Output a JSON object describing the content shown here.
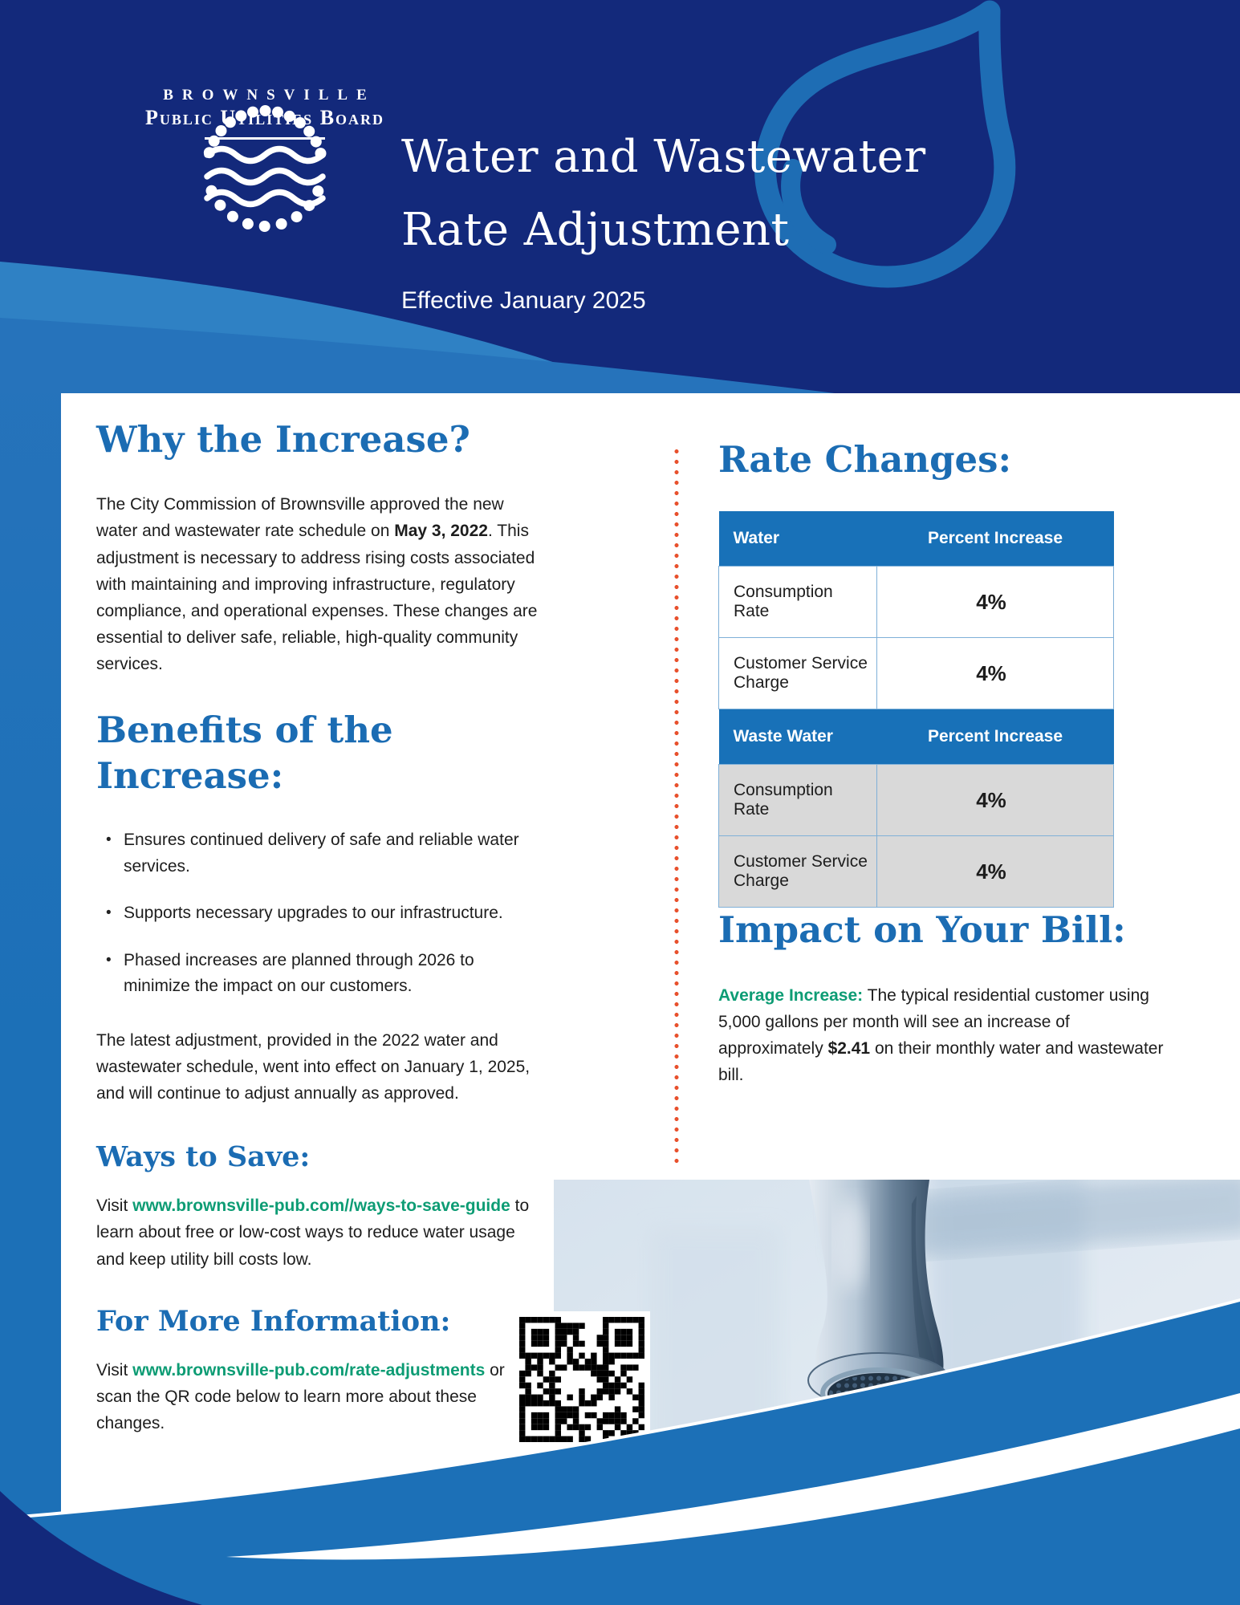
{
  "colors": {
    "navy": "#13297b",
    "swoosh_blue": "#1c70b7",
    "heading_blue": "#1b6cb3",
    "table_header_blue": "#1871b8",
    "table_gray_row": "#d9d9d9",
    "link_green": "#0d9c74",
    "divider_orange": "#e8512d"
  },
  "header": {
    "logo_top": "BROWNSVILLE",
    "logo_bottom": "Public Utilities Board",
    "title_line1": "Water and Wastewater",
    "title_line2": "Rate Adjustment",
    "subtitle": "Effective January 2025"
  },
  "left": {
    "why_heading": "Why the Increase?",
    "why_pre": "The City Commission of Brownsville approved the new water and wastewater rate schedule on ",
    "why_bold": "May 3, 2022",
    "why_post": ". This adjustment is necessary to address rising costs associated with maintaining and improving infrastructure, regulatory compliance, and operational expenses. These changes are essential to deliver safe, reliable, high-quality community services.",
    "benefits_heading": "Benefits of the Increase:",
    "bullets": [
      "Ensures continued delivery of safe and reliable water services.",
      "Supports necessary upgrades to our infrastructure.",
      "Phased increases are planned through 2026 to minimize the impact on our customers."
    ],
    "latest_para": "The latest adjustment, provided in the 2022 water and wastewater schedule, went into effect on January 1, 2025, and will continue to adjust annually as approved.",
    "ways_heading": "Ways to Save:",
    "ways_pre": "Visit ",
    "ways_link": "www.brownsville-pub.com//ways-to-save-guide",
    "ways_post": " to learn about free or low-cost ways to reduce water usage and keep utility bill costs low.",
    "more_heading": "For More Information:",
    "more_pre": "Visit ",
    "more_link": "www.brownsville-pub.com/rate-adjustments",
    "more_post": " or scan the QR code below to learn more about these changes."
  },
  "right": {
    "rate_heading": "Rate Changes:",
    "table": {
      "water_header": [
        "Water",
        "Percent Increase"
      ],
      "water_rows": [
        [
          "Consumption Rate",
          "4%"
        ],
        [
          "Customer Service Charge",
          "4%"
        ]
      ],
      "waste_header": [
        "Waste Water",
        "Percent Increase"
      ],
      "waste_rows": [
        [
          "Consumption Rate",
          "4%"
        ],
        [
          "Customer Service Charge",
          "4%"
        ]
      ]
    },
    "impact_heading": "Impact on Your Bill:",
    "impact_lead": "Average Increase:",
    "impact_pre": " The typical residential customer using 5,000 gallons per month will see an increase of approximately ",
    "impact_amount": "$2.41",
    "impact_post": " on their monthly water and wastewater bill."
  }
}
